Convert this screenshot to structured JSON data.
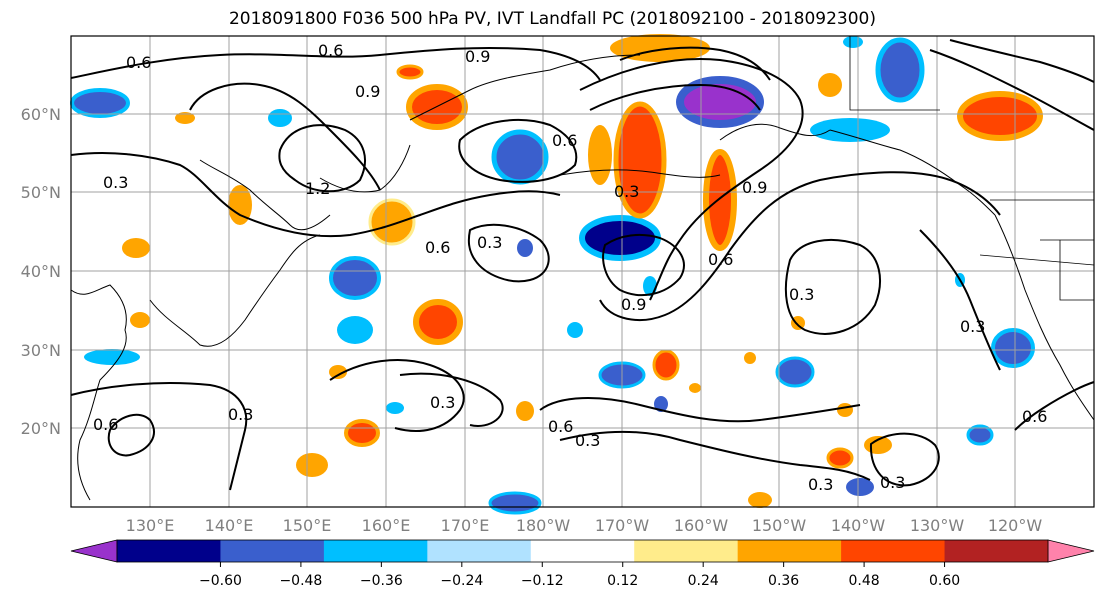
{
  "title": "2018091800 F036 500 hPa PV, IVT Landfall PC (2018092100 - 2018092300)",
  "map": {
    "lat_labels": [
      "60°N",
      "50°N",
      "40°N",
      "30°N",
      "20°N"
    ],
    "lon_labels": [
      "130°E",
      "140°E",
      "150°E",
      "160°E",
      "170°E",
      "180°W",
      "170°W",
      "160°W",
      "150°W",
      "140°W",
      "130°W",
      "120°W"
    ],
    "contour_labels": [
      "0.6",
      "0.6",
      "0.9",
      "1.2",
      "0.3",
      "0.6",
      "0.3",
      "0.6",
      "0.9",
      "0.3",
      "0.9",
      "0.6",
      "0.3",
      "0.3",
      "0.6",
      "0.3",
      "0.3",
      "0.3",
      "0.6",
      "0.3",
      "0.9",
      "0.6",
      "0.3"
    ]
  },
  "colorbar": {
    "ticks": [
      "−0.60",
      "−0.48",
      "−0.36",
      "−0.24",
      "−0.12",
      "0.12",
      "0.24",
      "0.36",
      "0.48",
      "0.60"
    ],
    "colors": [
      "#9932cc",
      "#00008b",
      "#3a5fcd",
      "#00bfff",
      "#b0e2ff",
      "#ffffff",
      "#ffec8b",
      "#ffa500",
      "#ff4500",
      "#b22222",
      "#ff82ab"
    ]
  }
}
